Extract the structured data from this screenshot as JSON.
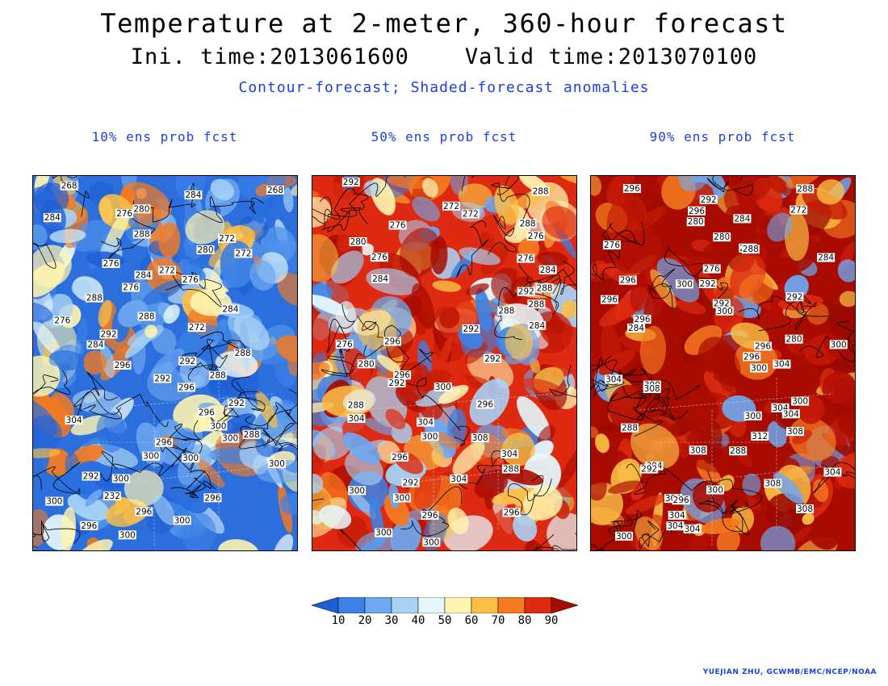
{
  "title": "Temperature at 2-meter, 360-hour forecast",
  "subtitle": "Ini. time:2013061600    Valid time:2013070100",
  "description": "Contour-forecast; Shaded-forecast anomalies",
  "panels": [
    {
      "title": "10% ens prob fcst",
      "scheme": "cool",
      "contour_labels": [
        "268",
        "268",
        "284",
        "280",
        "276",
        "284",
        "288",
        "272",
        "280",
        "272",
        "276",
        "272",
        "284",
        "276",
        "276",
        "288",
        "284",
        "288",
        "276",
        "272",
        "292",
        "284",
        "288",
        "292",
        "296",
        "288",
        "292",
        "296",
        "292",
        "296",
        "304",
        "300",
        "288",
        "300",
        "296",
        "300",
        "300",
        "300",
        "292",
        "300",
        "232",
        "296",
        "300",
        "296",
        "300",
        "296",
        "300"
      ]
    },
    {
      "title": "50% ens prob fcst",
      "scheme": "mid",
      "contour_labels": [
        "292",
        "288",
        "272",
        "272",
        "288",
        "276",
        "276",
        "280",
        "276",
        "276",
        "284",
        "284",
        "288",
        "292",
        "288",
        "288",
        "284",
        "292",
        "296",
        "276",
        "292",
        "280",
        "296",
        "292",
        "300",
        "296",
        "288",
        "304",
        "304",
        "300",
        "308",
        "304",
        "296",
        "288",
        "304",
        "292",
        "300",
        "300",
        "296",
        "296",
        "300",
        "300"
      ]
    },
    {
      "title": "90% ens prob fcst",
      "scheme": "warm",
      "contour_labels": [
        "296",
        "288",
        "292",
        "272",
        "296",
        "284",
        "280",
        "280",
        "276",
        "280",
        "288",
        "284",
        "276",
        "296",
        "292",
        "300",
        "296",
        "292",
        "292",
        "300",
        "296",
        "284",
        "280",
        "300",
        "296",
        "296",
        "304",
        "300",
        "304",
        "300",
        "308",
        "300",
        "304",
        "304",
        "300",
        "288",
        "308",
        "312",
        "308",
        "288",
        "304",
        "292",
        "304",
        "308",
        "300",
        "304",
        "296",
        "308",
        "304",
        "304",
        "304",
        "300"
      ]
    }
  ],
  "colorbar": {
    "ticks": [
      "10",
      "20",
      "30",
      "40",
      "50",
      "60",
      "70",
      "80",
      "90"
    ],
    "colors": [
      "#1f5fd6",
      "#3c82e6",
      "#6ea8f0",
      "#a8d3f7",
      "#e6f7fb",
      "#fff4b0",
      "#fbbf46",
      "#f57a20",
      "#dd2a10",
      "#a80c00"
    ]
  },
  "credit": "YUEJIAN ZHU, GCWMB/EMC/NCEP/NOAA"
}
